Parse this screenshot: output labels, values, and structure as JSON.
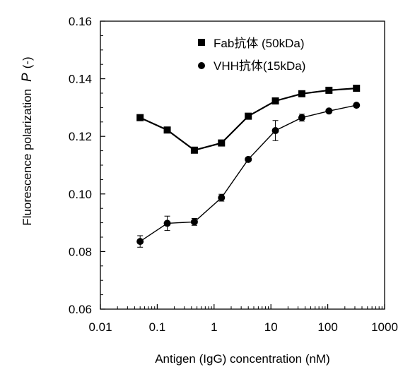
{
  "chart_data": {
    "type": "line",
    "title": "",
    "xlabel": "Antigen (IgG) concentration (nM)",
    "ylabel": "Fluorescence polarization",
    "ylabel_symbol": "P",
    "ylabel_unit": "(-)",
    "x_scale": "log",
    "xlim": [
      0.01,
      1000
    ],
    "ylim": [
      0.06,
      0.16
    ],
    "x_ticks": [
      0.01,
      0.1,
      1,
      10,
      100,
      1000
    ],
    "x_tick_labels": [
      "0.01",
      "0.1",
      "1",
      "10",
      "100",
      "1000"
    ],
    "y_ticks": [
      0.06,
      0.08,
      0.1,
      0.12,
      0.14,
      0.16
    ],
    "y_tick_labels": [
      "0.06",
      "0.08",
      "0.10",
      "0.12",
      "0.14",
      "0.16"
    ],
    "grid": false,
    "legend_position": "top-right",
    "x": [
      0.05,
      0.15,
      0.45,
      1.35,
      4,
      12,
      35,
      105,
      320
    ],
    "series": [
      {
        "name": "Fab抗体 (50kDa)",
        "marker": "square",
        "color": "#000000",
        "values": [
          0.1265,
          0.1222,
          0.1152,
          0.1177,
          0.127,
          0.1323,
          0.1348,
          0.136,
          0.1367
        ],
        "errors": [
          0.0005,
          0.0005,
          0.0005,
          0.0005,
          0.0005,
          0.0005,
          0.0005,
          0.0005,
          0.0005
        ]
      },
      {
        "name": "VHH抗体(15kDa)",
        "marker": "circle",
        "color": "#000000",
        "values": [
          0.0835,
          0.0898,
          0.0903,
          0.0987,
          0.112,
          0.122,
          0.1265,
          0.1288,
          0.1308
        ],
        "errors": [
          0.002,
          0.0025,
          0.0012,
          0.0012,
          0.0005,
          0.0035,
          0.0012,
          0.0005,
          0.0005
        ]
      }
    ]
  }
}
